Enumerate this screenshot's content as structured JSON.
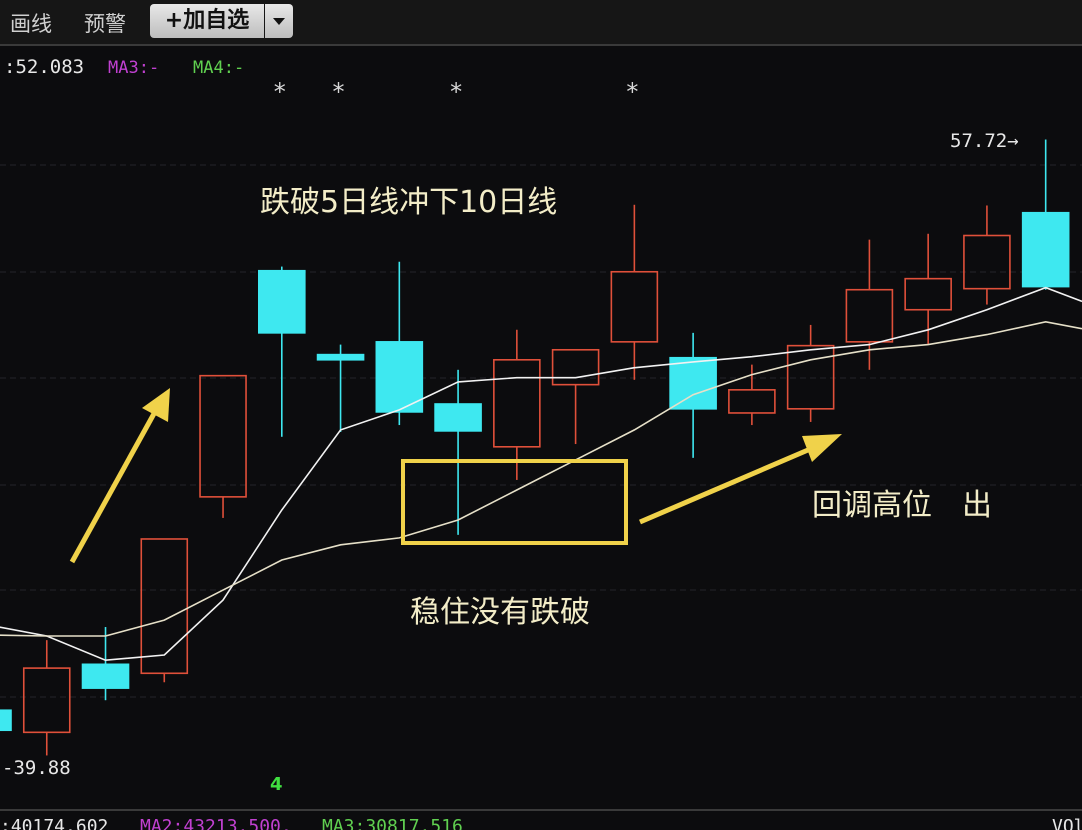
{
  "toolbar": {
    "draw_line": "画线",
    "alert": "预警",
    "add_watchlist": "+加自选",
    "dropdown_icon": "caret-down-icon"
  },
  "indicator_top": {
    "value": ":52.083",
    "ma3": "MA3:-",
    "ma4": "MA4:-"
  },
  "indicator_bottom": {
    "value": ":40174.602",
    "ma2": "MA2:43213.500,",
    "ma3": "MA3:30817.516",
    "vol": "VOl"
  },
  "colors": {
    "up": "#e0503a",
    "down": "#3ee8f0",
    "ma5": "#f2f2f2",
    "ma10": "#e6e0c8",
    "annotation": "#f0d24a",
    "ma2_color": "#c040d0",
    "ma3_bottom_color": "#60d050"
  },
  "chart_data": {
    "type": "candlestick",
    "ylim": [
      38.3,
      60.4
    ],
    "grid": true,
    "high_label": "57.72→",
    "low_label": "-39.88",
    "marker_label": "4",
    "star_symbol": "*",
    "star_candles": [
      6,
      7,
      9,
      12
    ],
    "candles": [
      {
        "o": 41.19,
        "c": 40.61,
        "h": 41.19,
        "l": 40.61
      },
      {
        "o": 40.55,
        "c": 42.41,
        "h": 43.22,
        "l": 39.88
      },
      {
        "o": 42.52,
        "c": 41.83,
        "h": 43.6,
        "l": 41.48
      },
      {
        "o": 42.26,
        "c": 46.15,
        "h": 46.15,
        "l": 42.0
      },
      {
        "o": 47.37,
        "c": 50.88,
        "h": 50.88,
        "l": 46.76
      },
      {
        "o": 53.92,
        "c": 52.12,
        "h": 54.04,
        "l": 49.11
      },
      {
        "o": 51.49,
        "c": 51.34,
        "h": 51.78,
        "l": 49.25
      },
      {
        "o": 51.86,
        "c": 49.83,
        "h": 54.18,
        "l": 49.45
      },
      {
        "o": 50.06,
        "c": 49.28,
        "h": 51.05,
        "l": 46.27
      },
      {
        "o": 48.82,
        "c": 51.34,
        "h": 52.21,
        "l": 47.86
      },
      {
        "o": 50.62,
        "c": 51.63,
        "h": 51.63,
        "l": 48.9
      },
      {
        "o": 51.86,
        "c": 53.89,
        "h": 55.83,
        "l": 50.76
      },
      {
        "o": 51.4,
        "c": 49.92,
        "h": 52.12,
        "l": 48.5
      },
      {
        "o": 49.8,
        "c": 50.47,
        "h": 51.2,
        "l": 49.45
      },
      {
        "o": 49.92,
        "c": 51.75,
        "h": 52.35,
        "l": 49.54
      },
      {
        "o": 51.86,
        "c": 53.37,
        "h": 54.82,
        "l": 51.05
      },
      {
        "o": 52.79,
        "c": 53.69,
        "h": 54.99,
        "l": 51.78
      },
      {
        "o": 53.4,
        "c": 54.94,
        "h": 55.81,
        "l": 52.94
      },
      {
        "o": 55.6,
        "c": 53.46,
        "h": 57.72,
        "l": 53.37
      }
    ],
    "ma_fast": [
      43.66,
      43.34,
      42.64,
      42.79,
      44.38,
      46.99,
      49.31,
      49.89,
      50.7,
      50.82,
      50.82,
      51.11,
      51.28,
      51.43,
      51.63,
      51.78,
      52.21,
      52.79,
      53.43
    ],
    "ma_slow": [
      43.37,
      43.34,
      43.34,
      43.8,
      44.67,
      45.54,
      45.98,
      46.18,
      46.7,
      47.57,
      48.44,
      49.31,
      50.33,
      50.91,
      51.34,
      51.63,
      51.78,
      52.07,
      52.44
    ],
    "annotations": {
      "break_text": "跌破5日线冲下10日线",
      "hold_text": "稳住没有跌破",
      "pullback_text": "回调高位　出"
    }
  }
}
